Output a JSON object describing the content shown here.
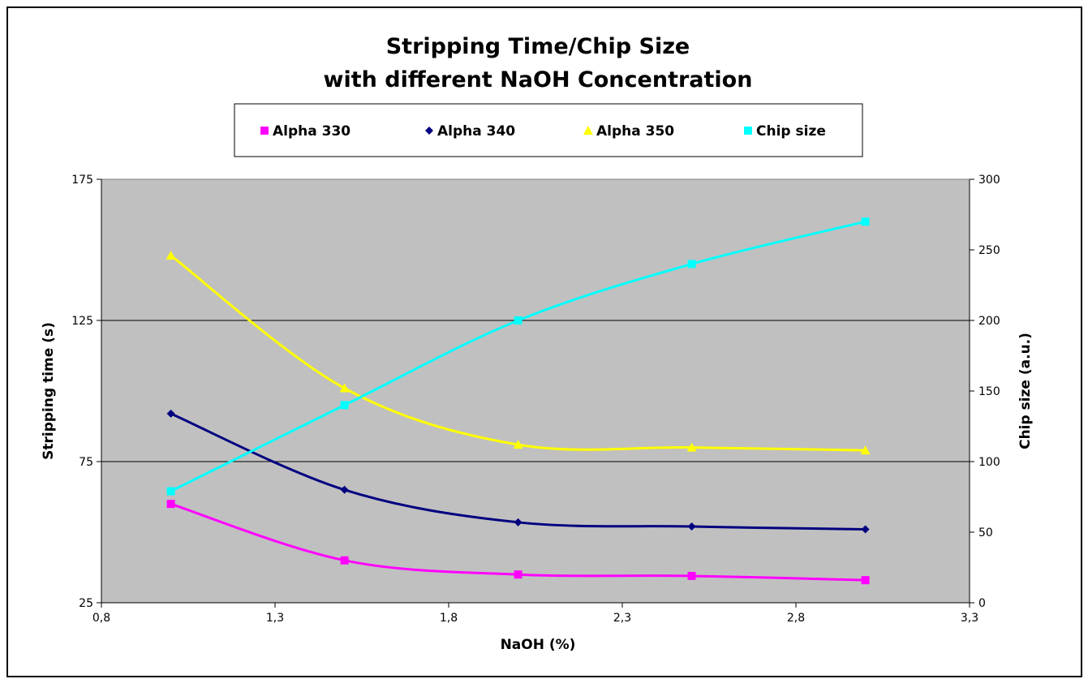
{
  "chart_data": {
    "type": "line",
    "title": [
      "Stripping Time/Chip Size",
      "with different NaOH Concentration"
    ],
    "xlabel": "NaOH (%)",
    "ylabel": "Stripping time (s)",
    "y2label": "Chip size (a.u.)",
    "xlim": [
      0.8,
      3.3
    ],
    "ylim": [
      25,
      175
    ],
    "y2lim": [
      0,
      300
    ],
    "xticks": [
      "0,8",
      "1,3",
      "1,8",
      "2,3",
      "2,8",
      "3,3"
    ],
    "xtick_values": [
      0.8,
      1.3,
      1.8,
      2.3,
      2.8,
      3.3
    ],
    "yticks": [
      "25",
      "75",
      "125",
      "175"
    ],
    "ytick_values": [
      25,
      75,
      125,
      175
    ],
    "y2ticks": [
      "0",
      "50",
      "100",
      "150",
      "200",
      "250",
      "300"
    ],
    "y2tick_values": [
      0,
      50,
      100,
      150,
      200,
      250,
      300
    ],
    "x": [
      1.0,
      1.5,
      2.0,
      2.5,
      3.0
    ],
    "grid": "horizontal major lines at left-axis ticks",
    "plot_background": "#c0c0c0",
    "legend_placement": "top-center",
    "series": [
      {
        "name": "Alpha 330",
        "axis": "left",
        "marker": "square",
        "color": "#ff00ff",
        "values": [
          60,
          40,
          35,
          34.5,
          33
        ]
      },
      {
        "name": "Alpha 340",
        "axis": "left",
        "marker": "diamond",
        "color": "#000080",
        "values": [
          92,
          65,
          53.5,
          52,
          51
        ]
      },
      {
        "name": "Alpha 350",
        "axis": "left",
        "marker": "triangle",
        "color": "#ffff00",
        "values": [
          148,
          101,
          81,
          80,
          79
        ]
      },
      {
        "name": "Chip size",
        "axis": "right",
        "marker": "square",
        "color": "#00ffff",
        "values": [
          79,
          140,
          200,
          240,
          270
        ]
      }
    ]
  }
}
